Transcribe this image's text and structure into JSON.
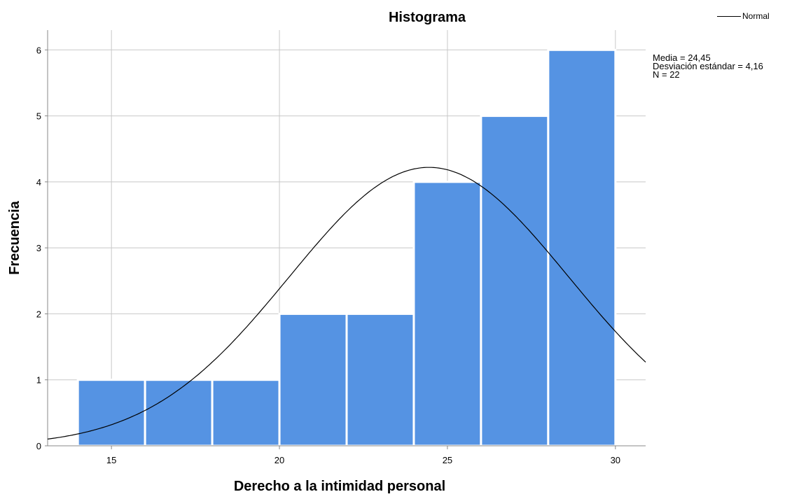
{
  "chart_data": {
    "type": "bar",
    "title": "Histograma",
    "xlabel": "Derecho a la intimidad personal",
    "ylabel": "Frecuencia",
    "bins": [
      {
        "from": 14,
        "to": 16,
        "count": 1
      },
      {
        "from": 16,
        "to": 18,
        "count": 1
      },
      {
        "from": 18,
        "to": 20,
        "count": 1
      },
      {
        "from": 20,
        "to": 22,
        "count": 2
      },
      {
        "from": 22,
        "to": 24,
        "count": 2
      },
      {
        "from": 24,
        "to": 26,
        "count": 4
      },
      {
        "from": 26,
        "to": 28,
        "count": 5
      },
      {
        "from": 28,
        "to": 30,
        "count": 6
      }
    ],
    "xlim": [
      13.1,
      30.9
    ],
    "ylim": [
      0,
      6.3
    ],
    "x_ticks": [
      15,
      20,
      25,
      30
    ],
    "y_ticks": [
      0,
      1,
      2,
      3,
      4,
      5,
      6
    ],
    "grid": true,
    "bar_color": "#5593e3",
    "curve": {
      "name": "Normal",
      "mean": 24.45,
      "sd": 4.16,
      "n": 22,
      "bin_width": 2,
      "color": "#000000"
    },
    "stats": [
      "Media = 24,45",
      "Desviación estándar = 4,16",
      "N = 22"
    ],
    "legend": {
      "position": "top-right",
      "label": "Normal"
    }
  }
}
